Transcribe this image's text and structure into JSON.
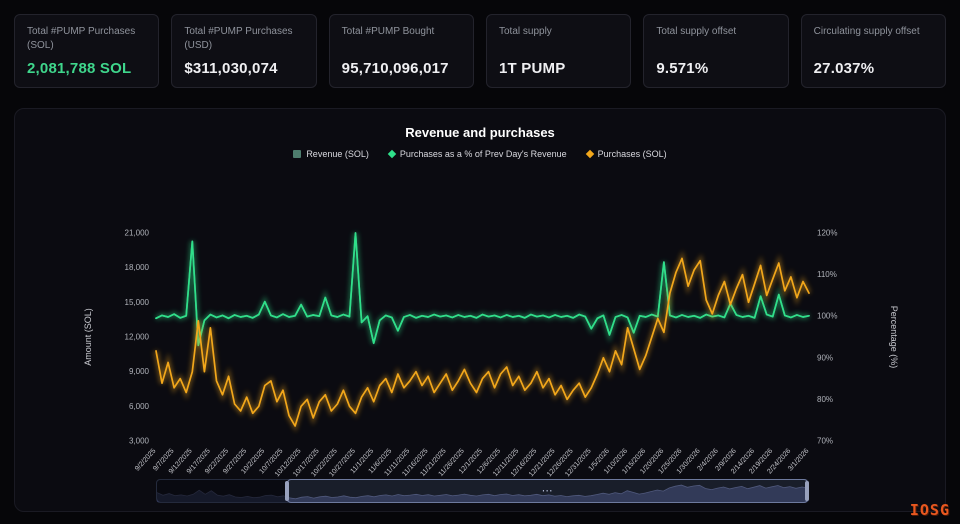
{
  "stats": [
    {
      "label": "Total #PUMP Purchases (SOL)",
      "value": "2,081,788 SOL"
    },
    {
      "label": "Total #PUMP Purchases (USD)",
      "value": "$311,030,074"
    },
    {
      "label": "Total #PUMP Bought",
      "value": "95,710,096,017"
    },
    {
      "label": "Total supply",
      "value": "1T PUMP"
    },
    {
      "label": "Total supply offset",
      "value": "9.571%"
    },
    {
      "label": "Circulating supply offset",
      "value": "27.037%"
    }
  ],
  "logo_text": "IOSG",
  "navigator": {
    "handle_glyph": "⋯"
  },
  "accent_colors": {
    "positive_green": "#3fd68c",
    "logo_orange": "#e8571f"
  },
  "chart_data": {
    "type": "line",
    "title": "Revenue and purchases",
    "legend_position": "top-center",
    "grid": false,
    "left_axis": {
      "label": "Amount (SOL)",
      "min": 3000,
      "max": 21000,
      "ticks": [
        "3,000",
        "6,000",
        "9,000",
        "12,000",
        "15,000",
        "18,000",
        "21,000"
      ]
    },
    "right_axis": {
      "label": "Percentage (%)",
      "min": 70,
      "max": 120,
      "ticks": [
        "70%",
        "80%",
        "90%",
        "100%",
        "110%",
        "120%"
      ]
    },
    "x_tick_labels": [
      "9/2/2025",
      "9/7/2025",
      "9/12/2025",
      "9/17/2025",
      "9/22/2025",
      "9/27/2025",
      "10/2/2025",
      "10/7/2025",
      "10/12/2025",
      "10/17/2025",
      "10/22/2025",
      "10/27/2025",
      "11/1/2025",
      "11/6/2025",
      "11/11/2025",
      "11/16/2025",
      "11/21/2025",
      "11/26/2025",
      "12/1/2025",
      "12/6/2025",
      "12/11/2025",
      "12/16/2025",
      "12/21/2025",
      "12/26/2025",
      "12/31/2025",
      "1/5/2026",
      "1/10/2026",
      "1/15/2026",
      "1/20/2026",
      "1/25/2026",
      "1/30/2026",
      "2/4/2026",
      "2/9/2026",
      "2/14/2026",
      "2/19/2026",
      "2/24/2026",
      "3/1/2026"
    ],
    "points_per_tick_interval": 3,
    "series": [
      {
        "name": "Revenue (SOL)",
        "axis": "left",
        "color": "#4e7d6e",
        "marker": "square",
        "glow": false,
        "values": [
          13620,
          13870,
          13730,
          13980,
          13660,
          13840,
          20280,
          11280,
          13440,
          13940,
          13690,
          13870,
          13620,
          13910,
          13730,
          13840,
          13660,
          13940,
          15060,
          13870,
          13690,
          13980,
          13730,
          13840,
          14810,
          13760,
          13910,
          13800,
          15420,
          13870,
          13730,
          13940,
          13760,
          21000,
          13260,
          13800,
          11460,
          13440,
          13870,
          13690,
          12540,
          13730,
          13910,
          13660,
          13840,
          13730,
          13940,
          13760,
          13870,
          13690,
          13910,
          13730,
          13840,
          13660,
          13940,
          13760,
          13870,
          13690,
          13910,
          13730,
          13840,
          13660,
          13940,
          13760,
          13870,
          13690,
          13910,
          13730,
          13840,
          13660,
          13940,
          13760,
          12720,
          13620,
          13870,
          12180,
          13730,
          13910,
          13690,
          12360,
          13840,
          13730,
          13940,
          13760,
          18480,
          13870,
          13690,
          13910,
          13730,
          13840,
          13660,
          13940,
          13760,
          13870,
          13690,
          14880,
          13910,
          13730,
          13840,
          13660,
          15530,
          13940,
          13760,
          15670,
          13870,
          13690,
          13910,
          13730,
          13840
        ]
      },
      {
        "name": "Purchases as a % of Prev Day's Revenue",
        "axis": "right",
        "color": "#2fe08a",
        "marker": "diamond",
        "glow": true,
        "values": [
          99.5,
          100.2,
          99.8,
          100.5,
          99.6,
          100.1,
          118,
          93,
          99,
          100.4,
          99.7,
          100.2,
          99.5,
          100.3,
          99.8,
          100.1,
          99.6,
          100.4,
          103.5,
          100.2,
          99.7,
          100.5,
          99.8,
          100.1,
          102.8,
          99.9,
          100.3,
          100,
          104.5,
          100.2,
          99.8,
          100.4,
          99.9,
          120,
          98.5,
          100,
          93.5,
          99,
          100.2,
          99.7,
          96.5,
          99.8,
          100.3,
          99.6,
          100.1,
          99.8,
          100.4,
          99.9,
          100.2,
          99.7,
          100.3,
          99.8,
          100.1,
          99.6,
          100.4,
          99.9,
          100.2,
          99.7,
          100.3,
          99.8,
          100.1,
          99.6,
          100.4,
          99.9,
          100.2,
          99.7,
          100.3,
          99.8,
          100.1,
          99.6,
          100.4,
          99.9,
          97,
          99.5,
          100.2,
          95.5,
          99.8,
          100.3,
          99.7,
          96,
          100.1,
          99.8,
          100.4,
          99.9,
          113,
          100.2,
          99.7,
          100.3,
          99.8,
          100.1,
          99.6,
          100.4,
          99.9,
          100.2,
          99.7,
          103,
          100.3,
          99.8,
          100.1,
          99.6,
          104.8,
          100.4,
          99.9,
          105.2,
          100.2,
          99.7,
          100.3,
          99.8,
          100.1
        ]
      },
      {
        "name": "Purchases (SOL)",
        "axis": "left",
        "color": "#f2a71b",
        "marker": "diamond",
        "glow": true,
        "values": [
          10800,
          8000,
          9800,
          7600,
          8400,
          7200,
          9000,
          13400,
          9000,
          12800,
          8200,
          7000,
          8600,
          6200,
          5600,
          6800,
          5400,
          6000,
          7800,
          8200,
          6400,
          7400,
          5200,
          4300,
          6000,
          6600,
          5000,
          6400,
          7000,
          5600,
          6200,
          7400,
          6000,
          5400,
          6800,
          7600,
          6400,
          7800,
          8400,
          7200,
          8800,
          7600,
          8200,
          9000,
          7800,
          8600,
          7200,
          8000,
          8800,
          7400,
          8200,
          9200,
          8000,
          7200,
          8400,
          9000,
          7600,
          8800,
          9400,
          7800,
          8600,
          7400,
          8000,
          9000,
          7600,
          8400,
          7000,
          7800,
          6600,
          7400,
          8000,
          6800,
          7600,
          8800,
          10200,
          9000,
          10800,
          9600,
          12800,
          11000,
          9200,
          10400,
          12000,
          13600,
          12400,
          15800,
          17600,
          18800,
          16400,
          17800,
          18600,
          15200,
          14000,
          15600,
          16800,
          14800,
          16200,
          17400,
          15000,
          16600,
          18200,
          15600,
          17000,
          18400,
          16000,
          17200,
          15400,
          16800,
          15800
        ]
      }
    ]
  }
}
